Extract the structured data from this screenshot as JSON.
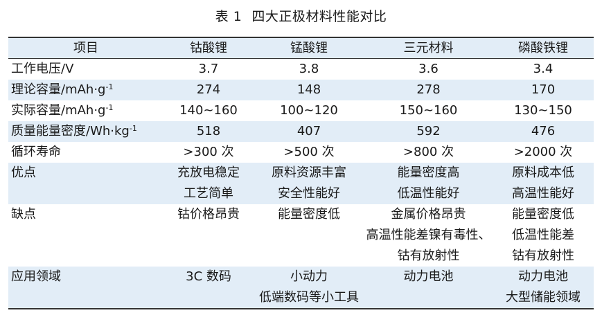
{
  "caption": {
    "number": "表 1",
    "title": "四大正极材料性能对比"
  },
  "headers": [
    "项目",
    "钴酸锂",
    "锰酸锂",
    "三元材料",
    "磷酸铁锂"
  ],
  "rows": [
    {
      "label": "工作电压/V",
      "sup": "",
      "cells": [
        [
          "3.7"
        ],
        [
          "3.8"
        ],
        [
          "3.6"
        ],
        [
          "3.4"
        ]
      ]
    },
    {
      "label": "理论容量/mAh·g",
      "sup": "-1",
      "cells": [
        [
          "274"
        ],
        [
          "148"
        ],
        [
          "278"
        ],
        [
          "170"
        ]
      ]
    },
    {
      "label": "实际容量/mAh·g",
      "sup": "-1",
      "cells": [
        [
          "140~160"
        ],
        [
          "100~120"
        ],
        [
          "150~160"
        ],
        [
          "130~150"
        ]
      ]
    },
    {
      "label": "质量能量密度/Wh·kg",
      "sup": "-1",
      "cells": [
        [
          "518"
        ],
        [
          "407"
        ],
        [
          "592"
        ],
        [
          "476"
        ]
      ]
    },
    {
      "label": "循环寿命",
      "sup": "",
      "cells": [
        [
          ">300 次"
        ],
        [
          ">500 次"
        ],
        [
          ">800 次"
        ],
        [
          ">2000 次"
        ]
      ]
    },
    {
      "label": "优点",
      "sup": "",
      "cells": [
        [
          "充放电稳定",
          "工艺简单"
        ],
        [
          "原料资源丰富",
          "安全性能好"
        ],
        [
          "能量密度高",
          "低温性能好"
        ],
        [
          "原料成本低",
          "高温性能好"
        ]
      ]
    },
    {
      "label": "缺点",
      "sup": "",
      "cells": [
        [
          "钴价格昂贵"
        ],
        [
          "能量密度低"
        ],
        [
          "金属价格昂贵",
          "高温性能差镍有毒性、",
          "钴有放射性"
        ],
        [
          "能量密度低",
          "低温性能差",
          "钴有放射性"
        ]
      ]
    },
    {
      "label": "应用领域",
      "sup": "",
      "cells": [
        [
          "3C 数码"
        ],
        [
          "小动力",
          "低端数码等小工具"
        ],
        [
          "动力电池"
        ],
        [
          "动力电池",
          "大型储能领域"
        ]
      ]
    }
  ],
  "colors": {
    "row_shade": "#e2edf7",
    "rule": "#333333",
    "text": "#1a1a1a"
  }
}
